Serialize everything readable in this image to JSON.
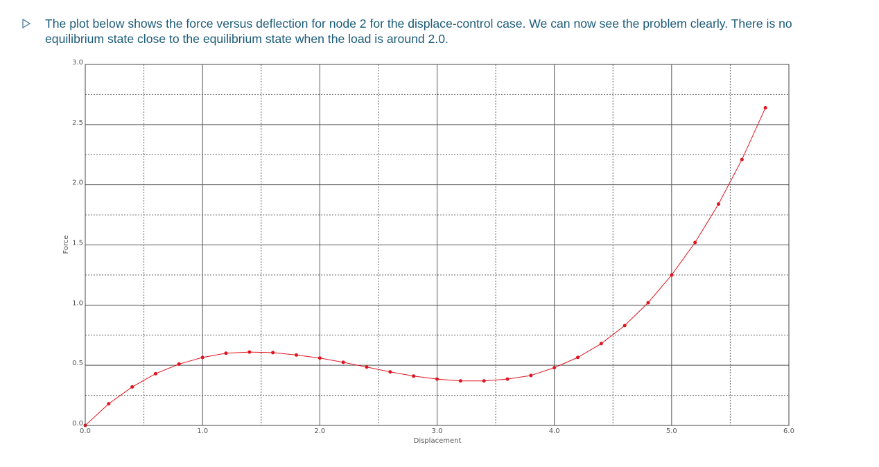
{
  "text": "The plot below shows the force versus deflection for node 2 for the displace-control case. We can now see the problem clearly. There is no equilibrium state close to the equilibrium state when the load is around 2.0.",
  "chart_data": {
    "type": "line",
    "x_label": "Displacement",
    "y_label": "Force",
    "x": [
      0,
      0.2,
      0.4,
      0.6,
      0.8,
      1.0,
      1.2,
      1.4,
      1.6,
      1.8,
      2.0,
      2.2,
      2.4,
      2.6,
      2.8,
      3.0,
      3.2,
      3.4,
      3.6,
      3.8,
      4.0,
      4.2,
      4.4,
      4.6,
      4.8,
      5.0,
      5.2,
      5.4,
      5.6,
      5.8
    ],
    "series": [
      {
        "color": "#e0141e",
        "values": [
          0,
          0.18,
          0.32,
          0.43,
          0.51,
          0.565,
          0.6,
          0.61,
          0.605,
          0.585,
          0.56,
          0.525,
          0.485,
          0.445,
          0.41,
          0.385,
          0.37,
          0.37,
          0.385,
          0.415,
          0.48,
          0.565,
          0.68,
          0.83,
          1.02,
          1.25,
          1.52,
          1.84,
          2.21,
          2.64
        ]
      }
    ],
    "xlim": [
      0,
      6
    ],
    "ylim": [
      0,
      3
    ],
    "xticks": [
      {
        "value": 0,
        "label": "0.0"
      },
      {
        "value": 1,
        "label": "1.0"
      },
      {
        "value": 2,
        "label": "2.0"
      },
      {
        "value": 3,
        "label": "3.0"
      },
      {
        "value": 4,
        "label": "4.0"
      },
      {
        "value": 5,
        "label": "5.0"
      },
      {
        "value": 6,
        "label": "6.0"
      }
    ],
    "yticks": [
      {
        "value": 0,
        "label": "0.0"
      },
      0.5,
      {
        "value": 1,
        "label": "1.0"
      },
      1.5,
      {
        "value": 2,
        "label": "2.0"
      },
      2.5,
      {
        "value": 3,
        "label": "3.0"
      }
    ],
    "grid": true
  }
}
